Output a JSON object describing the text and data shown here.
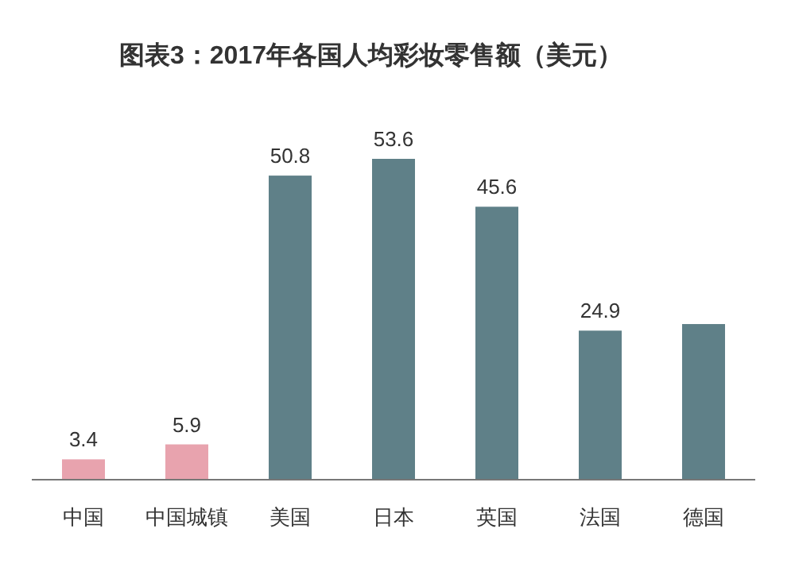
{
  "chart_data": {
    "type": "bar",
    "title": "图表3：2017年各国人均彩妆零售额（美元）",
    "categories": [
      "中国",
      "中国城镇",
      "美国",
      "日本",
      "英国",
      "法国",
      "德国"
    ],
    "values": [
      3.4,
      5.9,
      50.8,
      53.6,
      45.6,
      24.9,
      26.0
    ],
    "colors": [
      "#e8a3ae",
      "#e8a3ae",
      "#5f8088",
      "#5f8088",
      "#5f8088",
      "#5f8088",
      "#5f8088"
    ],
    "value_labels": [
      "3.4",
      "5.9",
      "50.8",
      "53.6",
      "45.6",
      "24.9",
      null
    ]
  }
}
